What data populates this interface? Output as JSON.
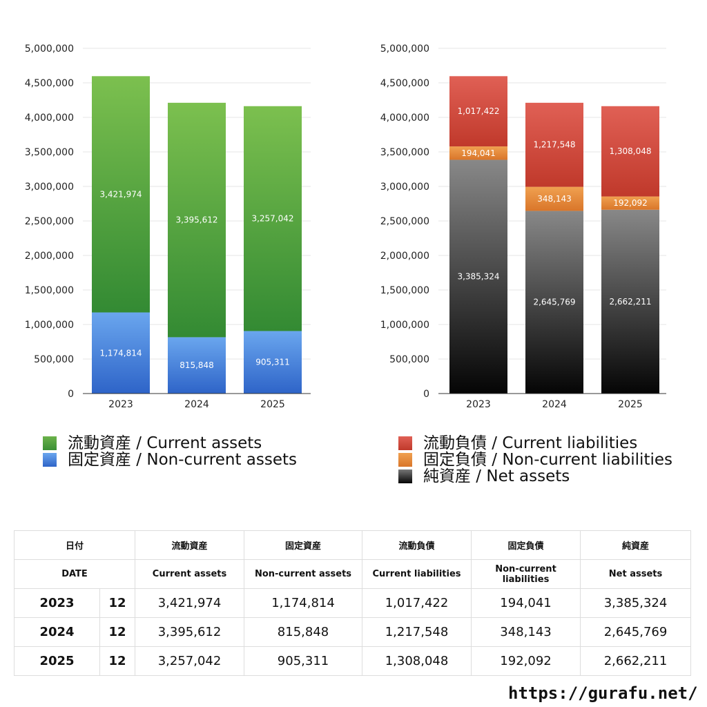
{
  "chart_data": [
    {
      "type": "bar",
      "stacked": true,
      "categories": [
        "2023",
        "2024",
        "2025"
      ],
      "ylim": [
        0,
        5000000
      ],
      "y_ticks": [
        "0",
        "500,000",
        "1,000,000",
        "1,500,000",
        "2,000,000",
        "2,500,000",
        "3,000,000",
        "3,500,000",
        "4,000,000",
        "4,500,000",
        "5,000,000"
      ],
      "grid": true,
      "series": [
        {
          "name": "固定資産 / Non-current assets",
          "values": [
            1174814,
            815848,
            905311
          ],
          "labels": [
            "1,174,814",
            "815,848",
            "905,311"
          ],
          "color_top": "#6aa6ee",
          "color_bottom": "#2e64c8"
        },
        {
          "name": "流動資産 / Current assets",
          "values": [
            3421974,
            3395612,
            3257042
          ],
          "labels": [
            "3,421,974",
            "3,395,612",
            "3,257,042"
          ],
          "color_top": "#7cc04f",
          "color_bottom": "#338a33"
        }
      ]
    },
    {
      "type": "bar",
      "stacked": true,
      "categories": [
        "2023",
        "2024",
        "2025"
      ],
      "ylim": [
        0,
        5000000
      ],
      "y_ticks": [
        "0",
        "500,000",
        "1,000,000",
        "1,500,000",
        "2,000,000",
        "2,500,000",
        "3,000,000",
        "3,500,000",
        "4,000,000",
        "4,500,000",
        "5,000,000"
      ],
      "grid": true,
      "series": [
        {
          "name": "純資産 / Net assets",
          "values": [
            3385324,
            2645769,
            2662211
          ],
          "labels": [
            "3,385,324",
            "2,645,769",
            "2,662,211"
          ],
          "color_top": "#888888",
          "color_bottom": "#050505"
        },
        {
          "name": "固定負債 / Non-current liabilities",
          "values": [
            194041,
            348143,
            192092
          ],
          "labels": [
            "194,041",
            "348,143",
            "192,092"
          ],
          "color_top": "#f0a050",
          "color_bottom": "#d9762a"
        },
        {
          "name": "流動負債 / Current liabilities",
          "values": [
            1017422,
            1217548,
            1308048
          ],
          "labels": [
            "1,017,422",
            "1,217,548",
            "1,308,048"
          ],
          "color_top": "#e06055",
          "color_bottom": "#c0392b"
        }
      ]
    }
  ],
  "legend_left": [
    {
      "label": "流動資産 / Current assets",
      "color": "#4fa040"
    },
    {
      "label": "固定資産 / Non-current assets",
      "color": "#4b86de"
    }
  ],
  "legend_right": [
    {
      "label": "流動負債 / Current liabilities",
      "color": "#d44a3e"
    },
    {
      "label": "固定負債 / Non-current liabilities",
      "color": "#e8893a"
    },
    {
      "label": "純資産 / Net assets",
      "color": "#333333"
    }
  ],
  "table": {
    "header_jp": {
      "date": "日付",
      "c1": "流動資産",
      "c2": "固定資産",
      "c3": "流動負債",
      "c4": "固定負債",
      "c5": "純資産"
    },
    "header_en": {
      "date": "DATE",
      "c1": "Current assets",
      "c2": "Non-current assets",
      "c3": "Current liabilities",
      "c4": "Non-current liabilities",
      "c5": "Net assets"
    },
    "rows": [
      {
        "year": "2023",
        "month": "12",
        "c1": "3,421,974",
        "c2": "1,174,814",
        "c3": "1,017,422",
        "c4": "194,041",
        "c5": "3,385,324"
      },
      {
        "year": "2024",
        "month": "12",
        "c1": "3,395,612",
        "c2": "815,848",
        "c3": "1,217,548",
        "c4": "348,143",
        "c5": "2,645,769"
      },
      {
        "year": "2025",
        "month": "12",
        "c1": "3,257,042",
        "c2": "905,311",
        "c3": "1,308,048",
        "c4": "192,092",
        "c5": "2,662,211"
      }
    ]
  },
  "footer": {
    "url": "https://gurafu.net/"
  }
}
